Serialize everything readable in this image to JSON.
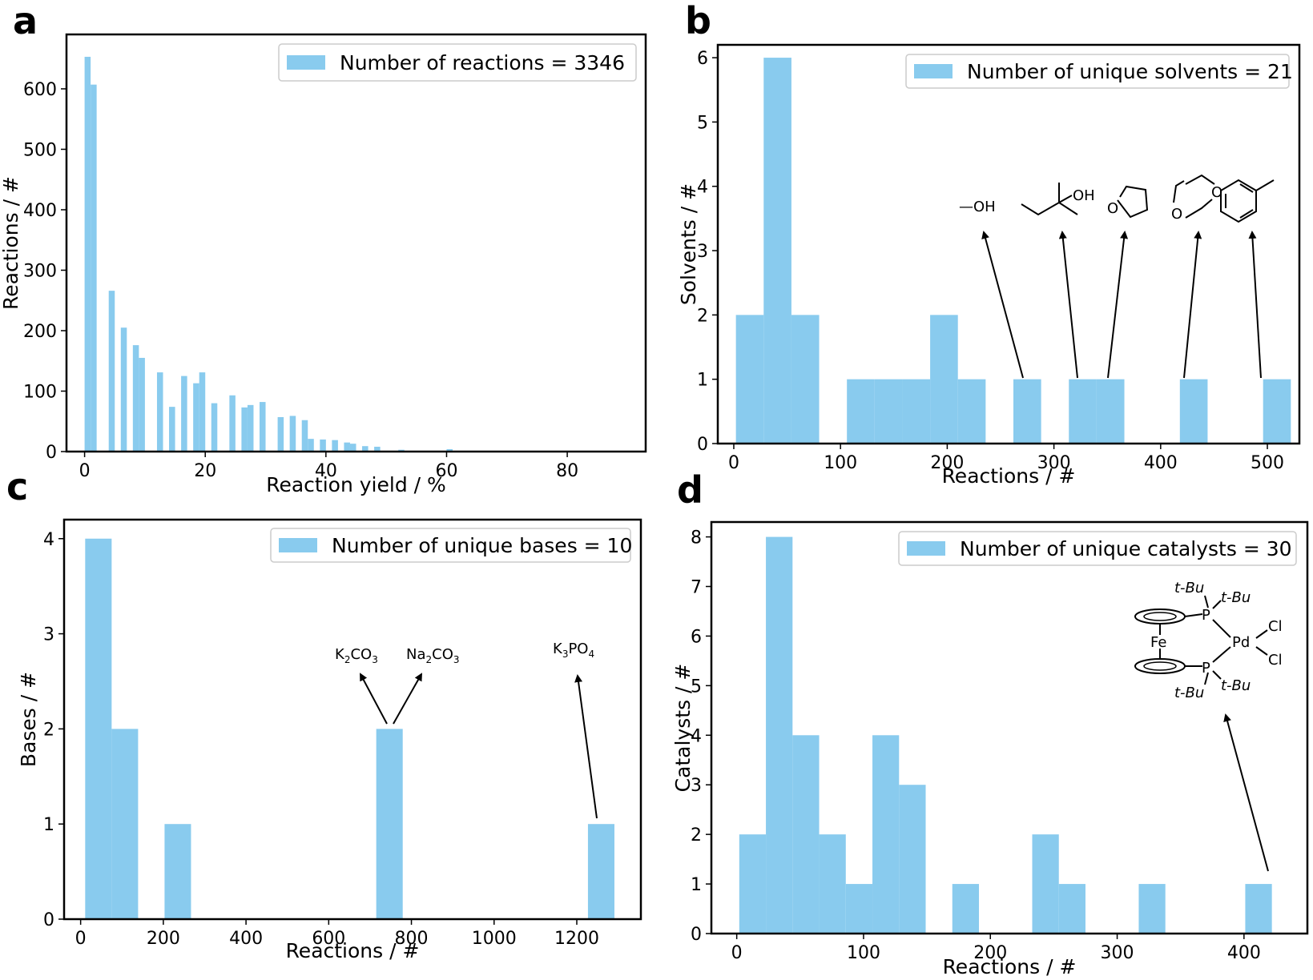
{
  "colors": {
    "bar": "#89CBEE",
    "axis": "#000000",
    "background": "#ffffff"
  },
  "chart_data": [
    {
      "panel": "a",
      "type": "bar",
      "xlabel": "Reaction yield / %",
      "ylabel": "Reactions / #",
      "xlim": [
        -3,
        93
      ],
      "ylim": [
        0,
        690
      ],
      "xticks": [
        0,
        20,
        40,
        60,
        80
      ],
      "yticks": [
        0,
        100,
        200,
        300,
        400,
        500,
        600
      ],
      "legend": {
        "text": "Number of reactions = 3346",
        "position": "top-right"
      },
      "bin_width": 1,
      "x": [
        0,
        1,
        4,
        6,
        8,
        9,
        12,
        14,
        16,
        18,
        19,
        21,
        24,
        26,
        27,
        29,
        32,
        34,
        36,
        37,
        39,
        41,
        43,
        44,
        46,
        48,
        52,
        60
      ],
      "values": [
        653,
        607,
        266,
        205,
        176,
        155,
        131,
        74,
        125,
        113,
        131,
        80,
        93,
        73,
        77,
        82,
        57,
        59,
        52,
        21,
        20,
        19,
        15,
        13,
        9,
        8,
        3,
        4
      ]
    },
    {
      "panel": "b",
      "type": "bar",
      "xlabel": "Reactions / #",
      "ylabel": "Solvents / #",
      "xlim": [
        -15,
        530
      ],
      "ylim": [
        0,
        6.2
      ],
      "xticks": [
        0,
        100,
        200,
        300,
        400,
        500
      ],
      "yticks": [
        0,
        1,
        2,
        3,
        4,
        5,
        6
      ],
      "legend": {
        "text": "Number of unique solvents = 21",
        "position": "top-right"
      },
      "bin_width": 26,
      "x": [
        2,
        28,
        54,
        106,
        132,
        158,
        184,
        210,
        262,
        314,
        340,
        418,
        496
      ],
      "values": [
        2,
        6,
        2,
        1,
        1,
        1,
        2,
        1,
        1,
        1,
        1,
        1,
        1
      ],
      "annotations": [
        {
          "label": "methanol",
          "formula": "—OH"
        },
        {
          "label": "tert-amyl alcohol",
          "formula": "OH"
        },
        {
          "label": "tetrahydrofuran",
          "formula": "O"
        },
        {
          "label": "1,4-dioxane",
          "atom1": "O",
          "atom2": "O"
        },
        {
          "label": "toluene"
        }
      ]
    },
    {
      "panel": "c",
      "type": "bar",
      "xlabel": "Reactions / #",
      "ylabel": "Bases / #",
      "xlim": [
        -40,
        1355
      ],
      "ylim": [
        0,
        4.2
      ],
      "xticks": [
        0,
        200,
        400,
        600,
        800,
        1000,
        1200
      ],
      "yticks": [
        0,
        1,
        2,
        3,
        4
      ],
      "legend": {
        "text": "Number of unique bases = 10",
        "position": "top-right"
      },
      "bin_width": 64,
      "x": [
        11,
        75,
        203,
        715,
        1227
      ],
      "values": [
        4,
        2,
        1,
        2,
        1
      ],
      "annotations": [
        {
          "label": "K₂CO₃",
          "main1": "K",
          "sub1": "2",
          "main2": "CO",
          "sub2": "3"
        },
        {
          "label": "Na₂CO₃",
          "main1": "Na",
          "sub1": "2",
          "main2": "CO",
          "sub2": "3"
        },
        {
          "label": "K₃PO₄",
          "main1": "K",
          "sub1": "3",
          "main2": "PO",
          "sub2": "4"
        }
      ]
    },
    {
      "panel": "d",
      "type": "bar",
      "xlabel": "Reactions / #",
      "ylabel": "Catalysts / #",
      "xlim": [
        -20,
        450
      ],
      "ylim": [
        0,
        8.3
      ],
      "xticks": [
        0,
        100,
        200,
        300,
        400
      ],
      "yticks": [
        0,
        1,
        2,
        3,
        4,
        5,
        6,
        7,
        8
      ],
      "legend": {
        "text": "Number of unique catalysts = 30",
        "position": "top-right"
      },
      "bin_width": 21,
      "x": [
        2,
        23,
        44,
        65,
        86,
        107,
        128,
        170,
        233,
        254,
        317,
        401
      ],
      "values": [
        2,
        8,
        4,
        2,
        1,
        4,
        3,
        1,
        2,
        1,
        1,
        1
      ],
      "structure_labels": {
        "tbu": "t-Bu",
        "p": "P",
        "pd": "Pd",
        "cl": "Cl",
        "fe": "Fe"
      }
    }
  ],
  "panel_letters": [
    "a",
    "b",
    "c",
    "d"
  ]
}
